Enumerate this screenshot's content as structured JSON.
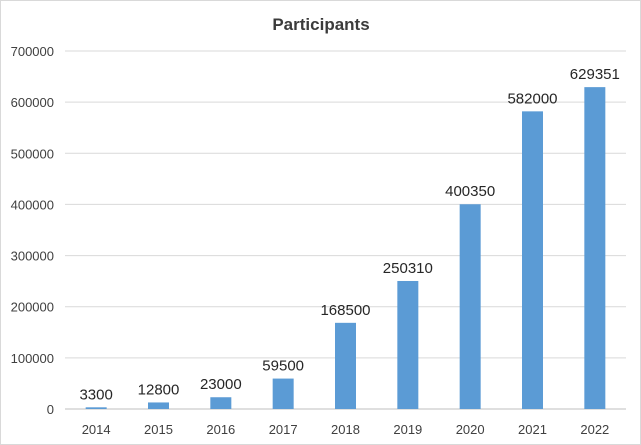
{
  "chart_data": {
    "type": "bar",
    "title": "Participants",
    "xlabel": "",
    "ylabel": "",
    "categories": [
      "2014",
      "2015",
      "2016",
      "2017",
      "2018",
      "2019",
      "2020",
      "2021",
      "2022"
    ],
    "series": [
      {
        "values": [
          3300,
          12800,
          23000,
          59500,
          168500,
          250310,
          400350,
          582000,
          629351
        ]
      }
    ],
    "ylim": [
      0,
      700000
    ],
    "yticks": [
      "0",
      "100000",
      "200000",
      "300000",
      "400000",
      "500000",
      "600000",
      "700000"
    ],
    "grid": true,
    "legend": "none",
    "data_labels": true,
    "bar_color": "#5B9BD5"
  }
}
